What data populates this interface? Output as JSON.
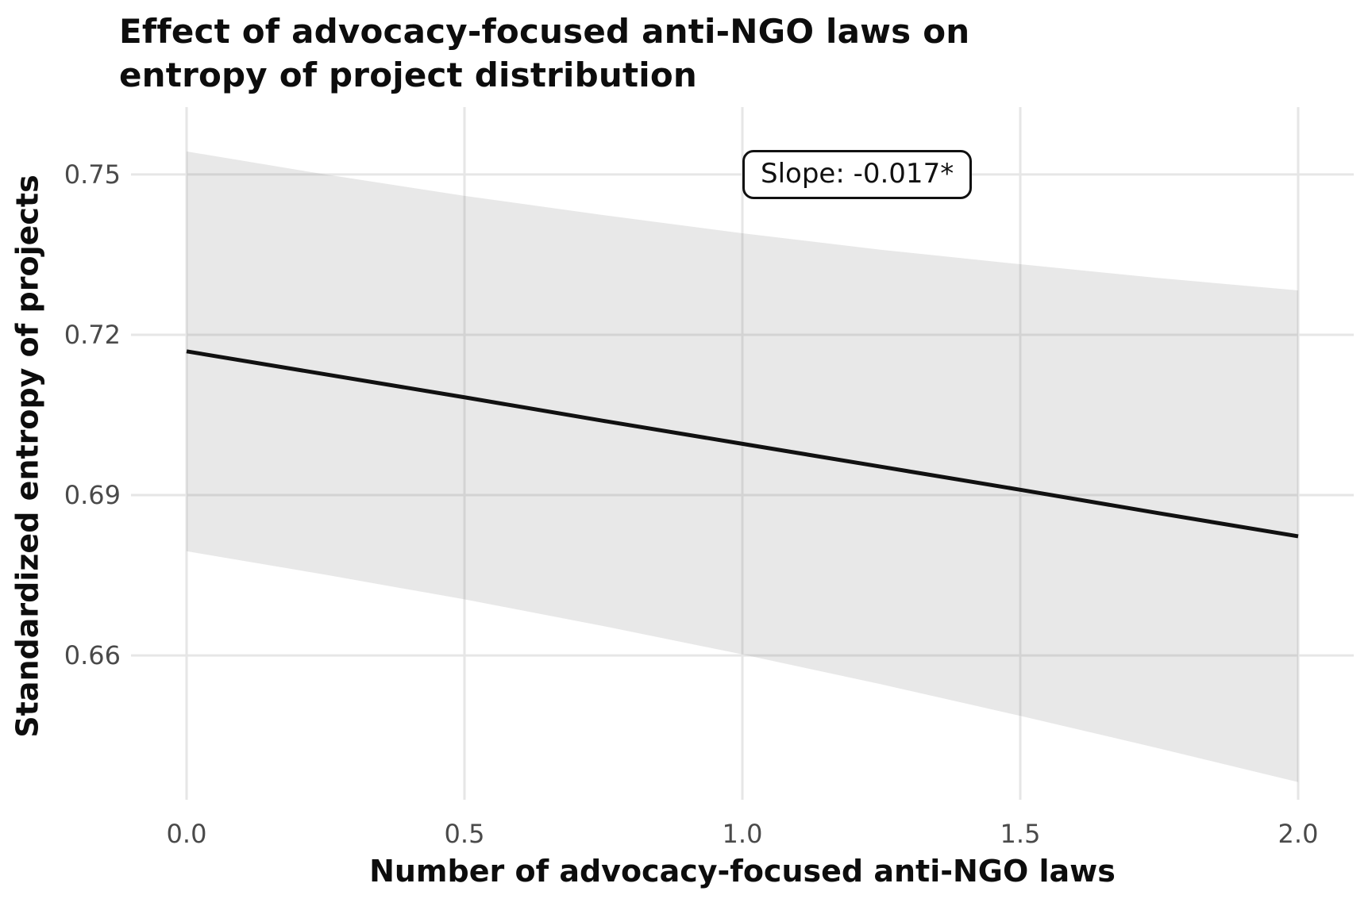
{
  "chart_data": {
    "type": "line",
    "title": "Effect of advocacy-focused anti-NGO laws on entropy of project distribution",
    "xlabel": "Number of advocacy-focused anti-NGO laws",
    "ylabel": "Standardized entropy of projects",
    "x_ticks": [
      0.0,
      0.5,
      1.0,
      1.5,
      2.0
    ],
    "x_tick_labels": [
      "0.0",
      "0.5",
      "1.0",
      "1.5",
      "2.0"
    ],
    "y_ticks": [
      0.66,
      0.69,
      0.72,
      0.75
    ],
    "y_tick_labels": [
      "0.66",
      "0.69",
      "0.72",
      "0.75"
    ],
    "xlim": [
      -0.1,
      2.1
    ],
    "ylim": [
      0.633,
      0.7626
    ],
    "grid": true,
    "legend": "none",
    "slope_estimate": -0.017,
    "annotation": {
      "text": "Slope: -0.017*"
    },
    "series": [
      {
        "name": "95% confidence band",
        "type": "band",
        "x": [
          0.0,
          0.25,
          0.5,
          0.75,
          1.0,
          1.25,
          1.5,
          1.75,
          2.0
        ],
        "upper": [
          0.7543,
          0.75,
          0.746,
          0.7424,
          0.739,
          0.7359,
          0.7332,
          0.7306,
          0.7283
        ],
        "lower": [
          0.6795,
          0.6751,
          0.6705,
          0.6655,
          0.6602,
          0.6546,
          0.6487,
          0.6426,
          0.6363
        ],
        "fill": "rgba(115,115,115,0.16)"
      },
      {
        "name": "fitted regression line",
        "type": "line",
        "x": [
          0.0,
          0.25,
          0.5,
          0.75,
          1.0,
          1.25,
          1.5,
          1.75,
          2.0
        ],
        "y": [
          0.7169,
          0.7126,
          0.7083,
          0.7039,
          0.6996,
          0.6953,
          0.691,
          0.6866,
          0.6823
        ],
        "color": "#111111",
        "width": 5
      }
    ],
    "colors": {
      "background": "#ffffff",
      "grid": "#e6e6e6",
      "tick_label": "#4a4a4a",
      "text": "#111111",
      "line": "#111111",
      "band": "#e9e9e9"
    }
  }
}
